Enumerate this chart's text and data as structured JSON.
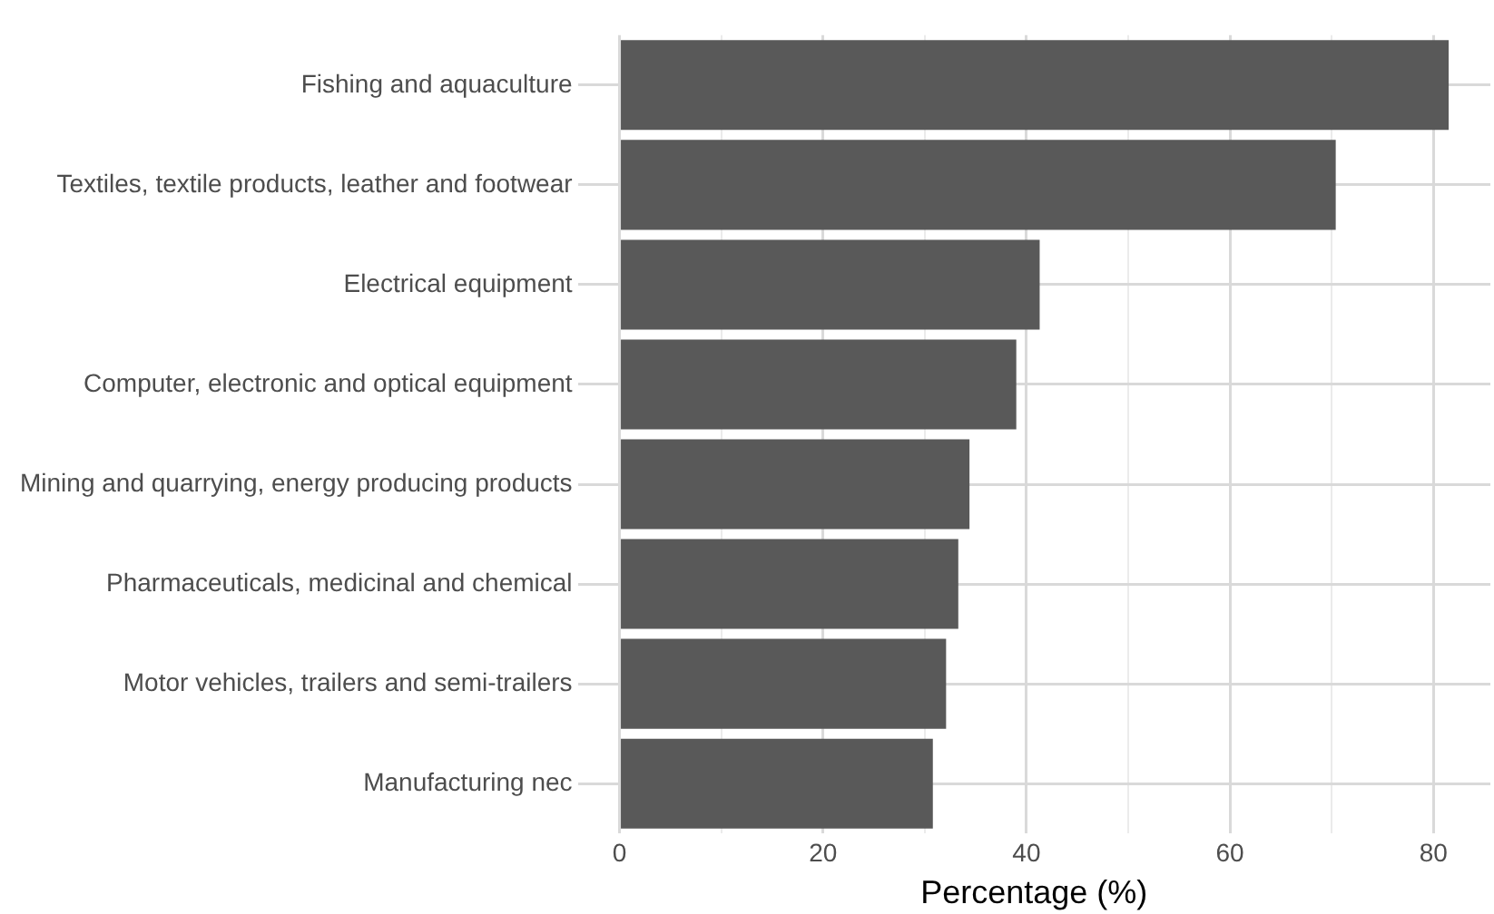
{
  "chart_data": {
    "type": "bar",
    "orientation": "horizontal",
    "xlabel": "Percentage (%)",
    "categories": [
      "Fishing and aquaculture",
      "Textiles, textile products, leather and footwear",
      "Electrical equipment",
      "Computer, electronic and optical equipment",
      "Mining and quarrying, energy producing products",
      "Pharmaceuticals, medicinal and chemical",
      "Motor vehicles, trailers and semi-trailers",
      "Manufacturing nec"
    ],
    "values": [
      81.5,
      70.4,
      41.3,
      39.0,
      34.4,
      33.3,
      32.1,
      30.8
    ],
    "color": "#595959",
    "xlim": [
      -4.1,
      85.6
    ],
    "xticks": [
      0,
      {
        "value": 10,
        "label": null
      },
      20,
      {
        "value": 30,
        "label": null
      },
      40,
      {
        "value": 50,
        "label": null
      },
      60,
      {
        "value": 70,
        "label": null
      },
      80
    ],
    "grid": true
  }
}
